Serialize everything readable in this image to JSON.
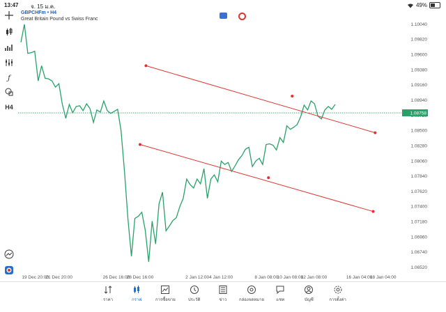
{
  "status_bar": {
    "time": "13:47",
    "date": "จ. 15 ม.ค.",
    "battery": "49%",
    "battery_level": 0.49
  },
  "symbol": {
    "title": "GBPCHFm • H4",
    "description": "Great Britain Pound vs Swiss Franc"
  },
  "left_toolbar": {
    "h4_label": "H4"
  },
  "price_axis": {
    "labels": [
      "1.10040",
      "1.09820",
      "1.09600",
      "1.09380",
      "1.09160",
      "1.08940",
      "1.08720",
      "1.08500",
      "1.08280",
      "1.08060",
      "1.07840",
      "1.07620",
      "1.07400",
      "1.07180",
      "1.06960",
      "1.06740",
      "1.06520"
    ],
    "current_price": "1.08758"
  },
  "time_axis": {
    "labels": [
      "19 Dec 20:00",
      "21 Dec 20:00",
      "26 Dec 16:00",
      "28 Dec 16:00",
      "2 Jan 12:00",
      "4 Jan 12:00",
      "8 Jan 08:00",
      "10 Jan 08:00",
      "12 Jan 08:00",
      "16 Jan 04:00",
      "18 Jan 04:00"
    ]
  },
  "colors": {
    "line": "#26a269",
    "channel": "#e0332f",
    "current_price_bg": "#26a269",
    "accent": "#1f6fd0"
  },
  "chart_data": {
    "type": "line",
    "series_color": "#26a269",
    "ylim": [
      1.0652,
      1.1015
    ],
    "y": [
      1.0978,
      1.1004,
      1.0962,
      1.0963,
      1.0965,
      1.0922,
      1.0944,
      1.0926,
      1.0925,
      1.0922,
      1.0913,
      1.0918,
      1.0888,
      1.0868,
      1.0888,
      1.0876,
      1.0885,
      1.0886,
      1.0879,
      1.0889,
      1.0882,
      1.0862,
      1.088,
      1.0877,
      1.0893,
      1.0879,
      1.0875,
      1.0878,
      1.0881,
      1.085,
      1.079,
      1.0722,
      1.0668,
      1.0723,
      1.0726,
      1.0732,
      1.0706,
      1.066,
      1.0719,
      1.0686,
      1.0744,
      1.0761,
      1.0705,
      1.0712,
      1.072,
      1.0724,
      1.074,
      1.0752,
      1.078,
      1.0772,
      1.0767,
      1.078,
      1.0773,
      1.0795,
      1.0752,
      1.078,
      1.0786,
      1.0776,
      1.0806,
      1.0801,
      1.0804,
      1.0791,
      1.0799,
      1.0808,
      1.0814,
      1.0823,
      1.0826,
      1.0798,
      1.0806,
      1.081,
      1.0801,
      1.083,
      1.0831,
      1.0829,
      1.0822,
      1.084,
      1.0833,
      1.0857,
      1.0852,
      1.0855,
      1.0859,
      1.087,
      1.0887,
      1.088,
      1.0893,
      1.0889,
      1.0871,
      1.0867,
      1.088,
      1.0885,
      1.0881,
      1.0888
    ],
    "trendlines": [
      {
        "name": "upper",
        "points": [
          [
            "2023-12-29 04:00",
            1.0944
          ],
          [
            "2024-01-10 12:00",
            1.09
          ],
          [
            "2024-01-17 12:00",
            1.0847
          ]
        ]
      },
      {
        "name": "lower",
        "points": [
          [
            "2023-12-28 16:00",
            1.083
          ],
          [
            "2024-01-08 12:00",
            1.0782
          ],
          [
            "2024-01-17 08:00",
            1.0733
          ]
        ]
      }
    ]
  },
  "nav": [
    {
      "label": "ราคา",
      "icon": "quotes-icon",
      "active": false
    },
    {
      "label": "กราฟ",
      "icon": "chart-icon",
      "active": true
    },
    {
      "label": "การซื้อขาย",
      "icon": "trade-icon",
      "active": false
    },
    {
      "label": "ประวัติ",
      "icon": "history-icon",
      "active": false
    },
    {
      "label": "ข่าว",
      "icon": "news-icon",
      "active": false
    },
    {
      "label": "กล่องจดหมาย",
      "icon": "mailbox-icon",
      "active": false
    },
    {
      "label": "แชท",
      "icon": "chat-icon",
      "active": false
    },
    {
      "label": "บัญชี",
      "icon": "account-icon",
      "active": false
    },
    {
      "label": "การตั้งค่า",
      "icon": "settings-icon",
      "active": false
    }
  ]
}
